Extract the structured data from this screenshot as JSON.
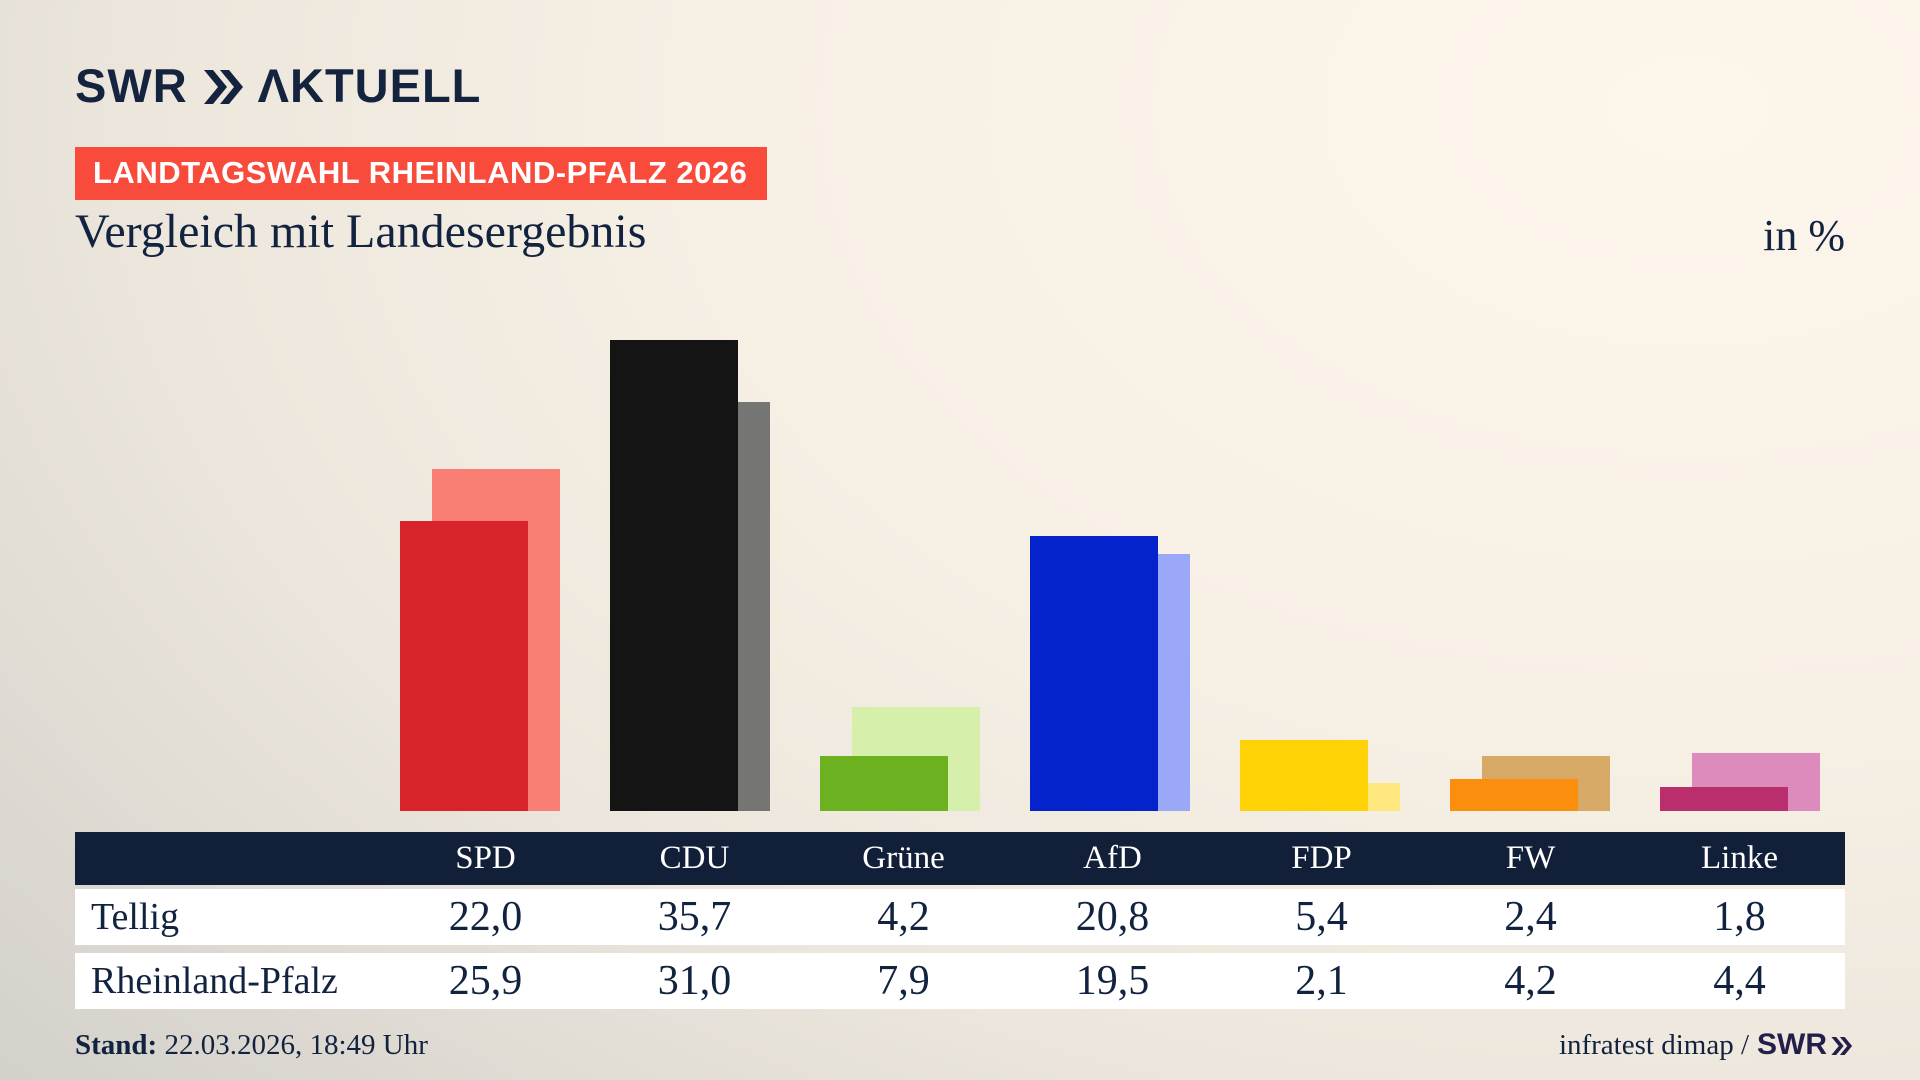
{
  "brand": {
    "logo_main": "SWR",
    "logo_suffix": "ΛKTUELL"
  },
  "badge": {
    "text": "LANDTAGSWAHL RHEINLAND-PFALZ 2026",
    "bg_color": "#f94b3c"
  },
  "chart_data": {
    "type": "bar",
    "title": "Vergleich mit Landesergebnis",
    "unit_label": "in %",
    "categories": [
      "SPD",
      "CDU",
      "Grüne",
      "AfD",
      "FDP",
      "FW",
      "Linke"
    ],
    "series": [
      {
        "name": "Tellig",
        "role": "front",
        "values": [
          22.0,
          35.7,
          4.2,
          20.8,
          5.4,
          2.4,
          1.8
        ],
        "display": [
          "22,0",
          "35,7",
          "4,2",
          "20,8",
          "5,4",
          "2,4",
          "1,8"
        ]
      },
      {
        "name": "Rheinland-Pfalz",
        "role": "back",
        "values": [
          25.9,
          31.0,
          7.9,
          19.5,
          2.1,
          4.2,
          4.4
        ],
        "display": [
          "25,9",
          "31,0",
          "7,9",
          "19,5",
          "2,1",
          "4,2",
          "4,4"
        ]
      }
    ],
    "colors_front": [
      "#d8232a",
      "#141414",
      "#6cb11f",
      "#0423cc",
      "#ffd205",
      "#fb8e0d",
      "#bb2e6e"
    ],
    "colors_back": [
      "#f97e74",
      "#757573",
      "#d6f0ab",
      "#9ba8f7",
      "#ffe97e",
      "#d7a967",
      "#dd8abd"
    ],
    "ylim": [
      0,
      40
    ],
    "grid": false,
    "legend_position": "table-below"
  },
  "footer": {
    "stand_label": "Stand:",
    "stand_value": "22.03.2026, 18:49 Uhr",
    "source_text": "infratest dimap /",
    "source_brand": "SWR"
  },
  "theme": {
    "text_navy": "#12233f",
    "table_header_bg": "#121f39",
    "row_bg": "#ffffff"
  }
}
